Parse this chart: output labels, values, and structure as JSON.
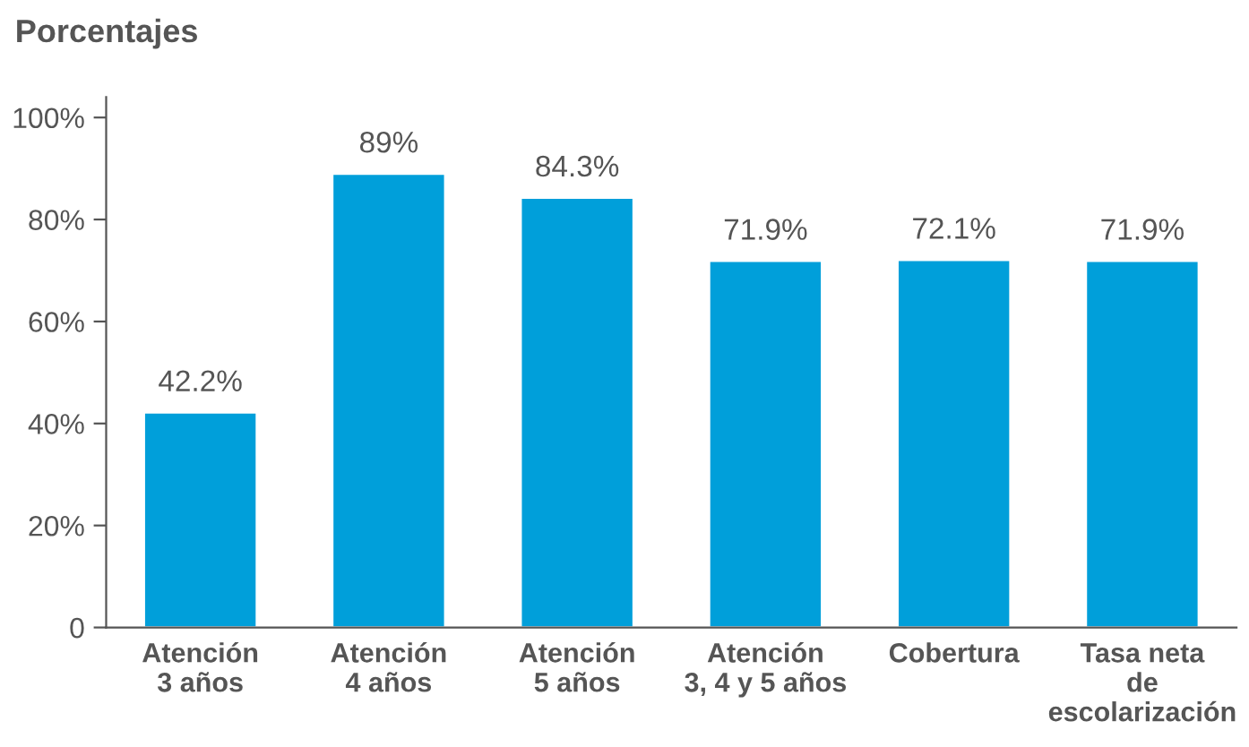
{
  "chart_data": {
    "type": "bar",
    "title": "Porcentajes",
    "categories": [
      "Atención\n3 años",
      "Atención\n4 años",
      "Atención\n5 años",
      "Atención\n3, 4 y 5 años",
      "Cobertura",
      "Tasa neta\nde\nescolarización"
    ],
    "values": [
      42.2,
      89,
      84.3,
      71.9,
      72.1,
      71.9
    ],
    "value_labels": [
      "42.2%",
      "89%",
      "84.3%",
      "71.9%",
      "72.1%",
      "71.9%"
    ],
    "color": "#009fda",
    "ylim": [
      0,
      104
    ],
    "yticks": [
      0,
      {
        "value": 20,
        "label": "20%"
      },
      {
        "value": 40,
        "label": "40%"
      },
      {
        "value": 60,
        "label": "60%"
      },
      {
        "value": 80,
        "label": "80%"
      },
      {
        "value": 100,
        "label": "100%"
      }
    ],
    "grid": false,
    "legend": false
  }
}
